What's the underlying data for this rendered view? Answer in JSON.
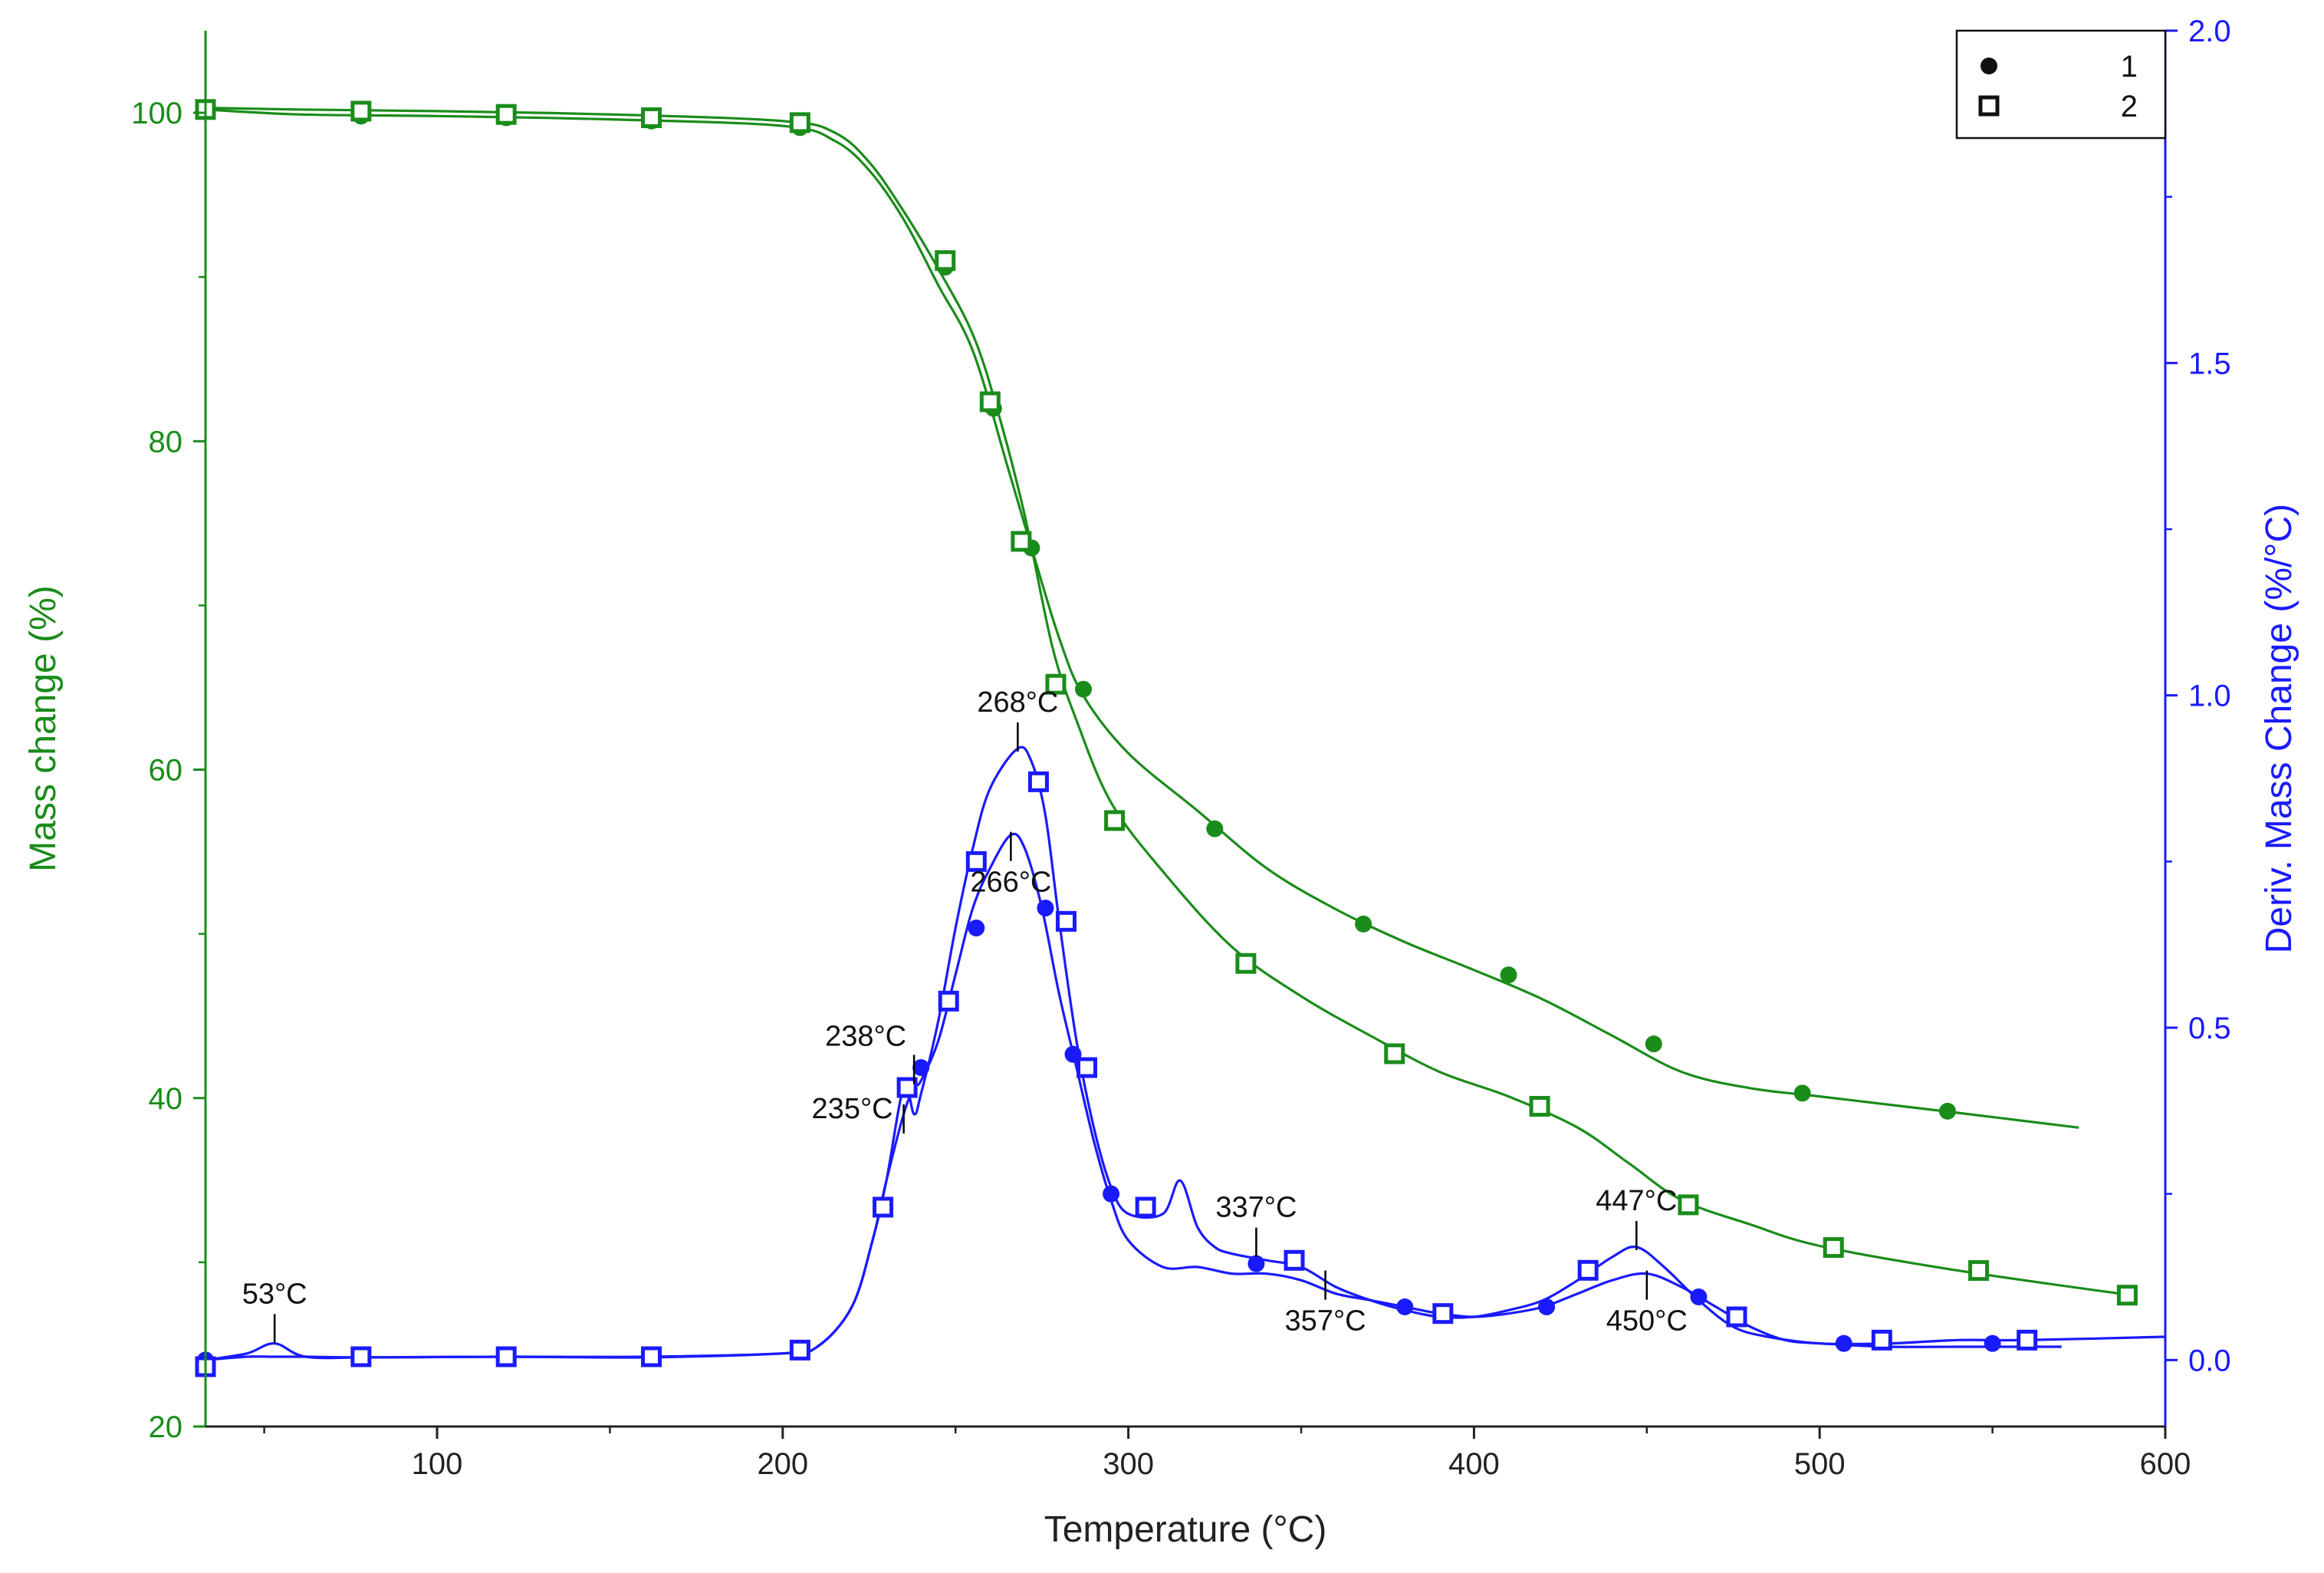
{
  "chart_data": {
    "type": "line",
    "title": "",
    "xlabel": "Temperature (°C)",
    "ylabel_left": "Mass change (%)",
    "ylabel_right": "Deriv. Mass Change (%/°C)",
    "xlim": [
      33,
      600
    ],
    "ylim_left": [
      20,
      105
    ],
    "ylim_right": [
      -0.1,
      2.0
    ],
    "x_ticks": [
      100,
      200,
      300,
      400,
      500,
      600
    ],
    "y_left_ticks": [
      20,
      40,
      60,
      80,
      100
    ],
    "y_right_ticks": [
      0.0,
      0.5,
      1.0,
      1.5,
      2.0
    ],
    "x_tick_labels": [
      "100",
      "200",
      "300",
      "400",
      "500",
      "600"
    ],
    "y_left_tick_labels": [
      "20",
      "40",
      "60",
      "80",
      "100"
    ],
    "y_right_tick_labels": [
      "0.0",
      "0.5",
      "1.0",
      "1.5",
      "2.0"
    ],
    "grid": false,
    "legend": {
      "position": "top-right",
      "entries": [
        {
          "marker": "filled-circle",
          "label": "1"
        },
        {
          "marker": "open-square",
          "label": "2"
        }
      ]
    },
    "colors": {
      "mass": "#1a8c1a",
      "deriv": "#1a1aff",
      "axis_left": "#1a8c1a",
      "axis_right": "#1a1aff",
      "bottom": "#222222"
    },
    "series": [
      {
        "name": "1",
        "kind": "mass",
        "axis": "left",
        "marker": "circle",
        "x": [
          33,
          60,
          100,
          150,
          200,
          215,
          225,
          235,
          245,
          255,
          265,
          272,
          280,
          287,
          300,
          320,
          340,
          360,
          380,
          400,
          420,
          440,
          460,
          480,
          500,
          540,
          575
        ],
        "y": [
          100.2,
          99.9,
          99.8,
          99.6,
          99.2,
          98.3,
          96.5,
          93.5,
          89.5,
          85.5,
          78.5,
          73.5,
          68,
          64.5,
          61,
          57.5,
          54,
          51.5,
          49.5,
          47.8,
          46,
          43.8,
          41.6,
          40.6,
          40.1,
          39.1,
          38.2
        ],
        "markers_x": [
          33,
          78,
          120,
          162,
          205,
          247,
          261,
          272,
          287,
          325,
          368,
          410,
          452,
          495,
          537
        ],
        "markers_y": [
          100.2,
          99.8,
          99.7,
          99.5,
          99.1,
          90.6,
          82,
          73.5,
          64.9,
          56.4,
          50.6,
          47.5,
          43.3,
          40.3,
          39.2
        ]
      },
      {
        "name": "2",
        "kind": "mass",
        "axis": "left",
        "marker": "square",
        "x": [
          33,
          60,
          100,
          150,
          200,
          215,
          225,
          235,
          245,
          255,
          262,
          270,
          278,
          285,
          295,
          310,
          330,
          350,
          370,
          390,
          410,
          430,
          445,
          460,
          480,
          500,
          540,
          590
        ],
        "y": [
          100.3,
          100.2,
          100.1,
          99.9,
          99.5,
          98.8,
          97,
          94,
          90.5,
          86.5,
          82,
          75.5,
          67.5,
          63,
          58,
          53.8,
          49.2,
          46.2,
          43.8,
          41.6,
          40.1,
          38.2,
          36,
          33.8,
          32.3,
          31,
          29.5,
          28
        ],
        "markers_x": [
          33,
          78,
          120,
          162,
          205,
          247,
          260,
          269,
          279,
          296,
          334,
          377,
          419,
          462,
          504,
          546,
          589
        ],
        "markers_y": [
          100.2,
          100.1,
          99.9,
          99.7,
          99.4,
          91,
          82.4,
          73.9,
          65.2,
          56.9,
          48.2,
          42.7,
          39.5,
          33.5,
          30.9,
          29.5,
          28
        ]
      },
      {
        "name": "1",
        "kind": "deriv",
        "axis": "right",
        "marker": "circle",
        "x": [
          33,
          45,
          53,
          62,
          80,
          120,
          160,
          200,
          210,
          220,
          226,
          230,
          235,
          238,
          240,
          245,
          250,
          255,
          260,
          266,
          270,
          275,
          280,
          285,
          290,
          295,
          300,
          310,
          320,
          330,
          340,
          350,
          360,
          370,
          380,
          390,
          400,
          410,
          420,
          430,
          440,
          450,
          460,
          470,
          480,
          490,
          500,
          520,
          540,
          560,
          570
        ],
        "y": [
          0.0,
          0.005,
          0.005,
          0.005,
          0.004,
          0.005,
          0.004,
          0.01,
          0.02,
          0.08,
          0.18,
          0.27,
          0.37,
          0.41,
          0.42,
          0.48,
          0.58,
          0.68,
          0.74,
          0.79,
          0.77,
          0.68,
          0.55,
          0.44,
          0.33,
          0.24,
          0.18,
          0.14,
          0.14,
          0.13,
          0.13,
          0.12,
          0.1,
          0.09,
          0.08,
          0.07,
          0.065,
          0.07,
          0.08,
          0.1,
          0.12,
          0.13,
          0.11,
          0.08,
          0.05,
          0.03,
          0.025,
          0.02,
          0.02,
          0.02,
          0.02
        ],
        "markers_x": [
          33,
          78,
          120,
          162,
          205,
          229,
          240,
          256,
          276,
          284,
          295,
          337,
          380,
          421,
          465,
          507,
          550
        ],
        "markers_y": [
          0.0,
          0.005,
          0.005,
          0.005,
          0.015,
          0.23,
          0.44,
          0.65,
          0.68,
          0.46,
          0.25,
          0.145,
          0.08,
          0.08,
          0.095,
          0.025,
          0.025
        ]
      },
      {
        "name": "2",
        "kind": "deriv",
        "axis": "right",
        "marker": "square",
        "x": [
          33,
          45,
          53,
          62,
          80,
          120,
          160,
          200,
          210,
          220,
          226,
          230,
          235,
          238,
          240,
          245,
          250,
          255,
          260,
          268,
          272,
          276,
          280,
          285,
          290,
          295,
          300,
          310,
          315,
          320,
          325,
          330,
          340,
          350,
          360,
          370,
          380,
          390,
          400,
          410,
          420,
          430,
          440,
          447,
          455,
          465,
          475,
          485,
          500,
          520,
          540,
          560,
          600
        ],
        "y": [
          0.0,
          0.01,
          0.025,
          0.005,
          0.004,
          0.005,
          0.005,
          0.01,
          0.02,
          0.08,
          0.18,
          0.27,
          0.41,
          0.37,
          0.4,
          0.51,
          0.65,
          0.77,
          0.86,
          0.92,
          0.9,
          0.82,
          0.66,
          0.48,
          0.35,
          0.26,
          0.22,
          0.22,
          0.27,
          0.2,
          0.17,
          0.16,
          0.15,
          0.14,
          0.11,
          0.09,
          0.075,
          0.065,
          0.065,
          0.075,
          0.09,
          0.12,
          0.155,
          0.17,
          0.14,
          0.09,
          0.05,
          0.035,
          0.025,
          0.025,
          0.03,
          0.03,
          0.035
        ],
        "markers_x": [
          33,
          78,
          120,
          162,
          205,
          229,
          236,
          248,
          256,
          274,
          282,
          288,
          305,
          348,
          391,
          433,
          476,
          518,
          560
        ],
        "markers_y": [
          -0.01,
          0.005,
          0.005,
          0.005,
          0.015,
          0.23,
          0.41,
          0.54,
          0.75,
          0.87,
          0.66,
          0.44,
          0.23,
          0.15,
          0.07,
          0.135,
          0.065,
          0.03,
          0.03
        ]
      }
    ],
    "annotations": [
      {
        "text": "53°C",
        "x": 53,
        "y": 0.03,
        "axis": "right",
        "label_side": "above"
      },
      {
        "text": "268°C",
        "x": 268,
        "y": 0.92,
        "axis": "right",
        "label_side": "above"
      },
      {
        "text": "266°C",
        "x": 266,
        "y": 0.79,
        "axis": "right",
        "label_side": "below"
      },
      {
        "text": "238°C",
        "x": 238,
        "y": 0.42,
        "axis": "right",
        "label_side": "above-left"
      },
      {
        "text": "235°C",
        "x": 235,
        "y": 0.38,
        "axis": "right",
        "label_side": "left"
      },
      {
        "text": "337°C",
        "x": 337,
        "y": 0.16,
        "axis": "right",
        "label_side": "above"
      },
      {
        "text": "357°C",
        "x": 357,
        "y": 0.13,
        "axis": "right",
        "label_side": "below"
      },
      {
        "text": "447°C",
        "x": 447,
        "y": 0.17,
        "axis": "right",
        "label_side": "above"
      },
      {
        "text": "450°C",
        "x": 450,
        "y": 0.13,
        "axis": "right",
        "label_side": "below"
      }
    ]
  }
}
